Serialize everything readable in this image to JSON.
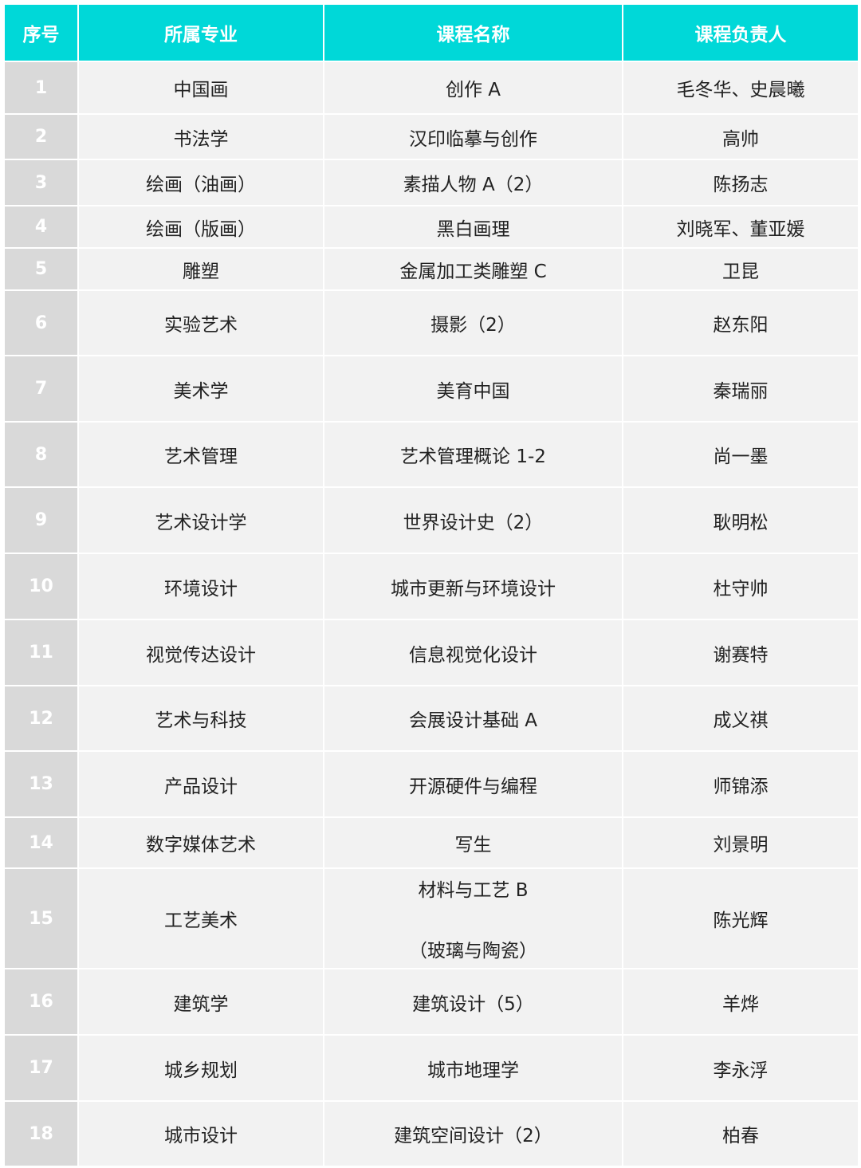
{
  "colors": {
    "header_bg": "#00d8d8",
    "index_bg": "#d9d9d9",
    "cell_bg": "#f2f2f2"
  },
  "headers": [
    "序号",
    "所属专业",
    "课程名称",
    "课程负责人"
  ],
  "rows": [
    {
      "no": "1",
      "major": "中国画",
      "course": "创作 A",
      "lead": "毛冬华、史晨曦"
    },
    {
      "no": "2",
      "major": "书法学",
      "course": "汉印临摹与创作",
      "lead": "高帅"
    },
    {
      "no": "3",
      "major": "绘画（油画）",
      "course": "素描人物 A（2）",
      "lead": "陈扬志"
    },
    {
      "no": "4",
      "major": "绘画（版画）",
      "course": "黑白画理",
      "lead": "刘晓军、董亚媛"
    },
    {
      "no": "5",
      "major": "雕塑",
      "course": "金属加工类雕塑 C",
      "lead": "卫昆"
    },
    {
      "no": "6",
      "major": "实验艺术",
      "course": "摄影（2）",
      "lead": "赵东阳"
    },
    {
      "no": "7",
      "major": "美术学",
      "course": "美育中国",
      "lead": "秦瑞丽"
    },
    {
      "no": "8",
      "major": "艺术管理",
      "course": "艺术管理概论 1-2",
      "lead": "尚一墨"
    },
    {
      "no": "9",
      "major": "艺术设计学",
      "course": "世界设计史（2）",
      "lead": "耿明松"
    },
    {
      "no": "10",
      "major": "环境设计",
      "course": "城市更新与环境设计",
      "lead": "杜守帅"
    },
    {
      "no": "11",
      "major": "视觉传达设计",
      "course": "信息视觉化设计",
      "lead": "谢赛特"
    },
    {
      "no": "12",
      "major": "艺术与科技",
      "course": "会展设计基础 A",
      "lead": "成义祺"
    },
    {
      "no": "13",
      "major": "产品设计",
      "course": "开源硬件与编程",
      "lead": "师锦添"
    },
    {
      "no": "14",
      "major": "数字媒体艺术",
      "course": "写生",
      "lead": "刘景明"
    },
    {
      "no": "15",
      "major": "工艺美术",
      "course": "材料与工艺 B",
      "course_line2": "（玻璃与陶瓷）",
      "lead": "陈光辉"
    },
    {
      "no": "16",
      "major": "建筑学",
      "course": "建筑设计（5）",
      "lead": "羊烨"
    },
    {
      "no": "17",
      "major": "城乡规划",
      "course": "城市地理学",
      "lead": "李永浮"
    },
    {
      "no": "18",
      "major": "城市设计",
      "course": "建筑空间设计（2）",
      "lead": "柏春"
    }
  ]
}
